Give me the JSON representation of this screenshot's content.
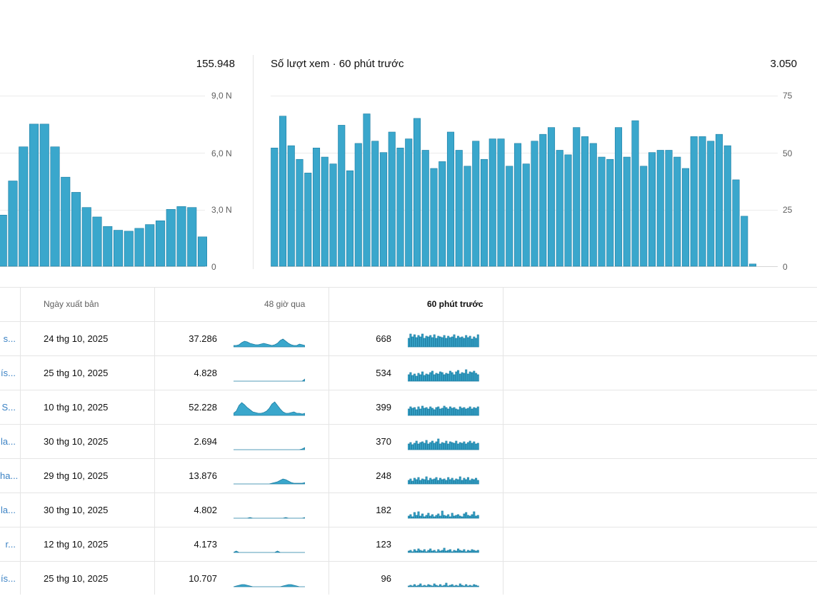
{
  "left_card": {
    "total": "155.948",
    "ticks": [
      "9,0 N",
      "6,0 N",
      "3,0 N",
      "0"
    ],
    "chart_data": {
      "type": "bar",
      "ylim": [
        0,
        9000
      ],
      "values": [
        2700,
        4500,
        6300,
        7500,
        7500,
        6300,
        4700,
        3900,
        3100,
        2600,
        2100,
        1900,
        1850,
        2000,
        2200,
        2400,
        3000,
        3150,
        3100,
        1550
      ]
    }
  },
  "right_card": {
    "title": "Số lượt xem · 60 phút trước",
    "total": "3.050",
    "ticks": [
      "75",
      "50",
      "25",
      "0"
    ],
    "chart_data": {
      "type": "bar",
      "ylim": [
        0,
        75
      ],
      "values": [
        52,
        66,
        53,
        47,
        41,
        52,
        48,
        45,
        62,
        42,
        54,
        67,
        55,
        50,
        59,
        52,
        56,
        65,
        51,
        43,
        46,
        59,
        51,
        44,
        55,
        47,
        56,
        56,
        44,
        54,
        45,
        55,
        58,
        61,
        51,
        49,
        61,
        57,
        54,
        48,
        47,
        61,
        48,
        64,
        44,
        50,
        51,
        51,
        48,
        43,
        57,
        57,
        55,
        58,
        53,
        38,
        22,
        1
      ]
    }
  },
  "table": {
    "headers": {
      "publish_date": "Ngày xuất bản",
      "last_48h": "48 giờ qua",
      "last_60m": "60 phút trước"
    },
    "rows": [
      {
        "title": "s...",
        "date": "24 thg 10, 2025",
        "views48": "37.286",
        "views60": "668",
        "spark48": [
          2,
          2,
          3,
          6,
          8,
          7,
          5,
          4,
          3,
          3,
          4,
          5,
          4,
          3,
          2,
          3,
          5,
          9,
          11,
          8,
          5,
          3,
          2,
          2,
          4,
          3,
          2
        ],
        "spark60": [
          12,
          18,
          14,
          17,
          13,
          16,
          14,
          18,
          12,
          15,
          14,
          16,
          13,
          17,
          12,
          15,
          14,
          13,
          16,
          12,
          15,
          13,
          14,
          17,
          12,
          15,
          13,
          14,
          12,
          16,
          13,
          15,
          11,
          14,
          12,
          17
        ]
      },
      {
        "title": "ís...",
        "date": "25 thg 10, 2025",
        "views48": "4.828",
        "views60": "534",
        "spark48": [
          0,
          0,
          0,
          0,
          0,
          0,
          0,
          0,
          0,
          0,
          0,
          0,
          0,
          0,
          0,
          0,
          0,
          0,
          0,
          0,
          0,
          0,
          0,
          0,
          0,
          0,
          3
        ],
        "spark60": [
          9,
          12,
          8,
          10,
          7,
          11,
          9,
          13,
          8,
          10,
          9,
          12,
          14,
          9,
          11,
          10,
          13,
          12,
          9,
          11,
          10,
          14,
          12,
          9,
          13,
          15,
          10,
          12,
          11,
          16,
          10,
          13,
          12,
          14,
          11,
          9
        ]
      },
      {
        "title": "S...",
        "date": "10 thg 10, 2025",
        "views48": "52.228",
        "views60": "399",
        "spark48": [
          3,
          6,
          14,
          18,
          15,
          11,
          8,
          5,
          4,
          3,
          3,
          4,
          6,
          10,
          16,
          19,
          14,
          9,
          5,
          3,
          3,
          4,
          5,
          3,
          3,
          2,
          3
        ],
        "spark60": [
          9,
          12,
          10,
          11,
          8,
          12,
          9,
          13,
          10,
          11,
          9,
          12,
          10,
          8,
          11,
          12,
          9,
          10,
          13,
          11,
          9,
          12,
          10,
          11,
          9,
          8,
          12,
          10,
          11,
          9,
          10,
          12,
          9,
          11,
          10,
          12
        ]
      },
      {
        "title": "la...",
        "date": "30 thg 10, 2025",
        "views48": "2.694",
        "views60": "370",
        "spark48": [
          0,
          0,
          0,
          0,
          0,
          0,
          0,
          0,
          0,
          0,
          0,
          0,
          0,
          0,
          0,
          0,
          0,
          0,
          0,
          0,
          0,
          0,
          0,
          0,
          0,
          1,
          3
        ],
        "spark60": [
          8,
          10,
          7,
          9,
          12,
          8,
          10,
          11,
          9,
          13,
          8,
          10,
          12,
          9,
          11,
          15,
          8,
          10,
          9,
          12,
          8,
          11,
          10,
          9,
          12,
          8,
          10,
          9,
          11,
          8,
          10,
          12,
          9,
          11,
          8,
          9
        ]
      },
      {
        "title": "ha...",
        "date": "29 thg 10, 2025",
        "views48": "13.876",
        "views60": "248",
        "spark48": [
          0,
          0,
          0,
          0,
          0,
          0,
          0,
          0,
          0,
          0,
          0,
          0,
          0,
          0,
          1,
          2,
          3,
          5,
          7,
          6,
          4,
          2,
          1,
          1,
          1,
          1,
          2
        ],
        "spark60": [
          5,
          7,
          4,
          8,
          6,
          9,
          5,
          7,
          6,
          10,
          5,
          8,
          6,
          7,
          9,
          5,
          8,
          6,
          7,
          5,
          9,
          6,
          8,
          5,
          7,
          6,
          10,
          5,
          8,
          6,
          9,
          5,
          7,
          6,
          8,
          5
        ]
      },
      {
        "title": "la...",
        "date": "30 thg 10, 2025",
        "views48": "4.802",
        "views60": "182",
        "spark48": [
          0,
          0,
          0,
          0,
          0,
          0,
          1,
          0,
          0,
          0,
          0,
          0,
          0,
          0,
          0,
          0,
          0,
          0,
          0,
          1,
          0,
          0,
          0,
          0,
          0,
          0,
          1
        ],
        "spark60": [
          3,
          5,
          2,
          8,
          4,
          9,
          3,
          6,
          2,
          4,
          7,
          3,
          5,
          2,
          4,
          6,
          3,
          10,
          4,
          3,
          5,
          2,
          7,
          3,
          4,
          5,
          3,
          2,
          6,
          8,
          4,
          3,
          5,
          9,
          3,
          4
        ]
      },
      {
        "title": "r...",
        "date": "12 thg 10, 2025",
        "views48": "4.173",
        "views60": "123",
        "spark48": [
          0,
          2,
          0,
          0,
          0,
          0,
          0,
          0,
          0,
          0,
          0,
          0,
          0,
          0,
          0,
          0,
          2,
          0,
          0,
          0,
          0,
          0,
          0,
          0,
          0,
          0,
          0
        ],
        "spark60": [
          2,
          3,
          1,
          4,
          2,
          5,
          3,
          2,
          4,
          1,
          3,
          5,
          2,
          3,
          1,
          4,
          2,
          3,
          6,
          2,
          3,
          4,
          1,
          3,
          2,
          5,
          3,
          2,
          4,
          1,
          3,
          2,
          4,
          3,
          2,
          3
        ]
      },
      {
        "title": "ís...",
        "date": "25 thg 10, 2025",
        "views48": "10.707",
        "views60": "96",
        "spark48": [
          0,
          1,
          2,
          3,
          3,
          2,
          1,
          0,
          0,
          0,
          0,
          0,
          0,
          0,
          0,
          0,
          0,
          0,
          1,
          2,
          3,
          3,
          2,
          1,
          0,
          0,
          0
        ],
        "spark60": [
          1,
          2,
          1,
          3,
          1,
          2,
          4,
          1,
          2,
          1,
          3,
          2,
          1,
          4,
          2,
          1,
          3,
          1,
          2,
          5,
          1,
          2,
          3,
          1,
          2,
          1,
          4,
          2,
          1,
          3,
          1,
          2,
          1,
          3,
          2,
          1
        ]
      }
    ]
  }
}
